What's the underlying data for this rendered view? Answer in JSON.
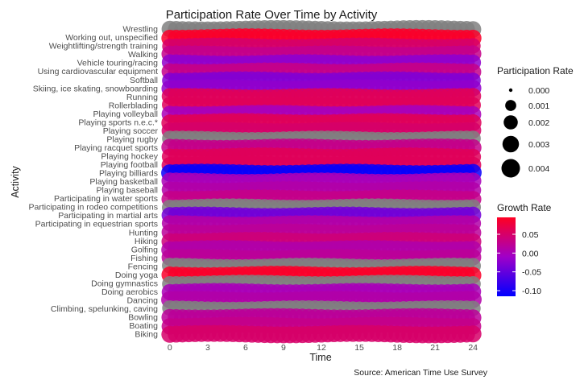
{
  "chart_data": {
    "type": "scatter",
    "title": "Participation Rate Over Time by Activity",
    "xlabel": "Time",
    "ylabel": "Activity",
    "caption": "Source: American Time Use Survey",
    "x_ticks": [
      0,
      3,
      6,
      9,
      12,
      15,
      18,
      21,
      24
    ],
    "xlim": [
      -0.5,
      24.5
    ],
    "grid": true,
    "activities": [
      {
        "name": "Wrestling",
        "growth": null,
        "rate": 0.003
      },
      {
        "name": "Working out, unspecified",
        "growth": 0.09,
        "rate": 0.0032
      },
      {
        "name": "Weightlifting/strength training",
        "growth": 0.05,
        "rate": 0.0025
      },
      {
        "name": "Walking",
        "growth": 0.03,
        "rate": 0.0031
      },
      {
        "name": "Vehicle touring/racing",
        "growth": -0.02,
        "rate": 0.0028
      },
      {
        "name": "Using cardiovascular equipment",
        "growth": 0.03,
        "rate": 0.003
      },
      {
        "name": "Softball",
        "growth": -0.03,
        "rate": 0.0026
      },
      {
        "name": "Skiing, ice skating, snowboarding",
        "growth": -0.02,
        "rate": 0.0031
      },
      {
        "name": "Running",
        "growth": 0.06,
        "rate": 0.0029
      },
      {
        "name": "Rollerblading",
        "growth": 0.06,
        "rate": 0.0027
      },
      {
        "name": "Playing volleyball",
        "growth": 0.0,
        "rate": 0.003
      },
      {
        "name": "Playing sports n.e.c.*",
        "growth": 0.06,
        "rate": 0.0032
      },
      {
        "name": "Playing soccer",
        "growth": 0.05,
        "rate": 0.003
      },
      {
        "name": "Playing rugby",
        "growth": null,
        "rate": 0.0026
      },
      {
        "name": "Playing racquet sports",
        "growth": 0.03,
        "rate": 0.0032
      },
      {
        "name": "Playing hockey",
        "growth": 0.06,
        "rate": 0.0028
      },
      {
        "name": "Playing football",
        "growth": 0.06,
        "rate": 0.003
      },
      {
        "name": "Playing billiards",
        "growth": -0.11,
        "rate": 0.0034
      },
      {
        "name": "Playing basketball",
        "growth": 0.0,
        "rate": 0.0031
      },
      {
        "name": "Playing baseball",
        "growth": 0.01,
        "rate": 0.0029
      },
      {
        "name": "Participating in water sports",
        "growth": 0.03,
        "rate": 0.0031
      },
      {
        "name": "Participating in rodeo competitions",
        "growth": null,
        "rate": 0.0027
      },
      {
        "name": "Participating in martial arts",
        "growth": -0.04,
        "rate": 0.003
      },
      {
        "name": "Participating in equestrian sports",
        "growth": 0.01,
        "rate": 0.0028
      },
      {
        "name": "Hunting",
        "growth": 0.02,
        "rate": 0.003
      },
      {
        "name": "Hiking",
        "growth": 0.04,
        "rate": 0.0031
      },
      {
        "name": "Golfing",
        "growth": 0.01,
        "rate": 0.0033
      },
      {
        "name": "Fishing",
        "growth": 0.02,
        "rate": 0.003
      },
      {
        "name": "Fencing",
        "growth": null,
        "rate": 0.0027
      },
      {
        "name": "Doing yoga",
        "growth": 0.09,
        "rate": 0.0031
      },
      {
        "name": "Doing gymnastics",
        "growth": null,
        "rate": 0.0026
      },
      {
        "name": "Doing aerobics",
        "growth": 0.0,
        "rate": 0.0029
      },
      {
        "name": "Dancing",
        "growth": 0.01,
        "rate": 0.0034
      },
      {
        "name": "Climbing, spelunking, caving",
        "growth": null,
        "rate": 0.0025
      },
      {
        "name": "Bowling",
        "growth": 0.02,
        "rate": 0.0031
      },
      {
        "name": "Boating",
        "growth": 0.03,
        "rate": 0.003
      },
      {
        "name": "Biking",
        "growth": 0.05,
        "rate": 0.0032
      }
    ],
    "na_color": "#808080",
    "size_legend": {
      "title": "Participation Rate",
      "labels": [
        "0.000",
        "0.001",
        "0.002",
        "0.003",
        "0.004"
      ],
      "values": [
        0.0,
        0.001,
        0.002,
        0.003,
        0.004
      ]
    },
    "color_legend": {
      "title": "Growth Rate",
      "labels": [
        "0.05",
        "0.00",
        "-0.05",
        "-0.10"
      ],
      "values": [
        0.05,
        0.0,
        -0.05,
        -0.1
      ],
      "range": [
        -0.115,
        0.095
      ],
      "low_color": "#0000ff",
      "mid_color": "#a000c8",
      "high_color": "#ff0022"
    }
  }
}
